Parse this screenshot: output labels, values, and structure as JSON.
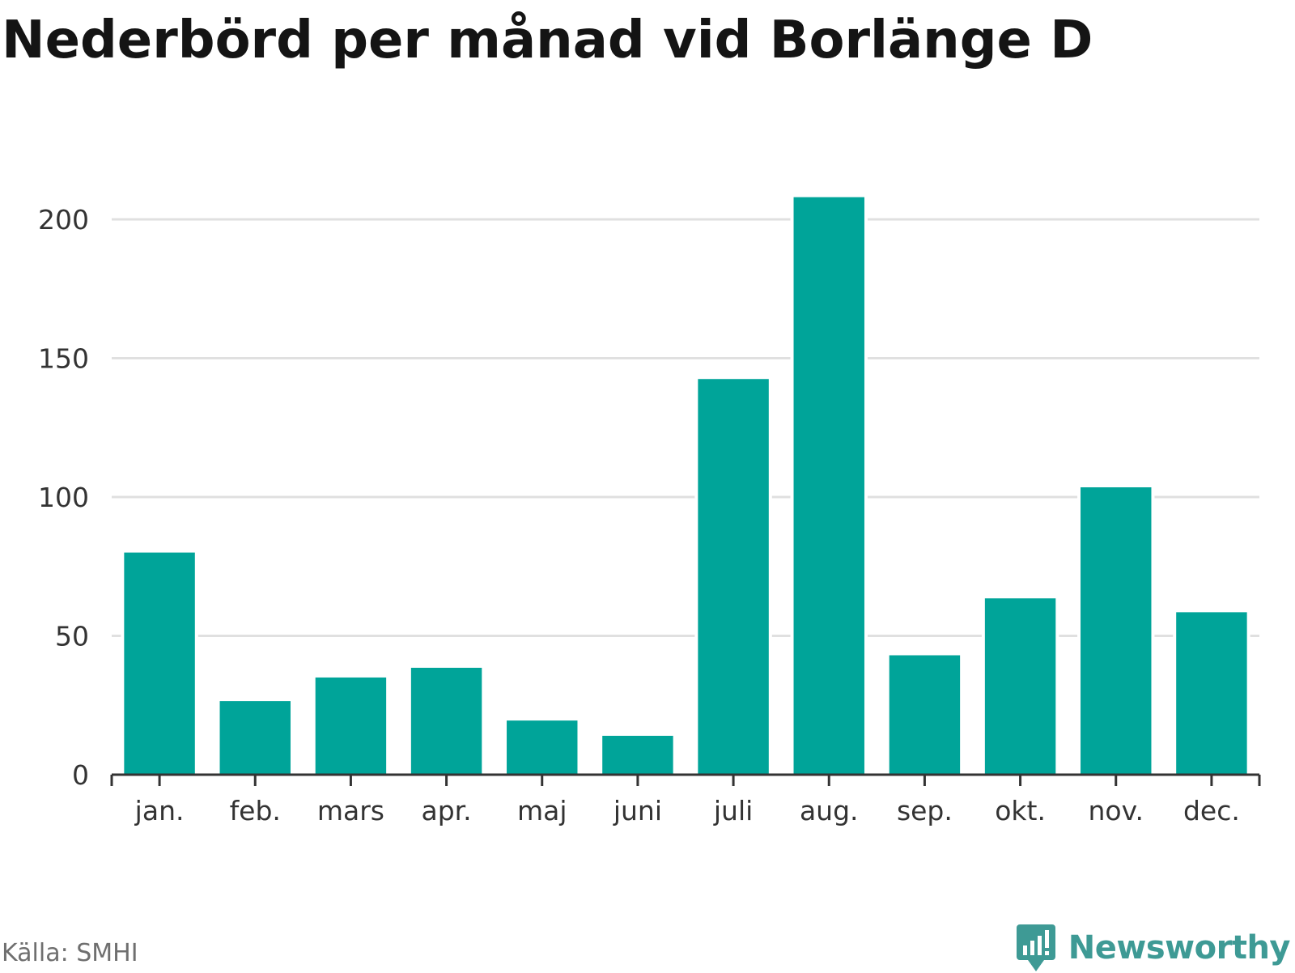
{
  "chart_data": {
    "type": "bar",
    "title": "Nederbörd per månad vid Borlänge D",
    "categories": [
      "jan.",
      "feb.",
      "mars",
      "apr.",
      "maj",
      "juni",
      "juli",
      "aug.",
      "sep.",
      "okt.",
      "nov.",
      "dec."
    ],
    "series": [
      {
        "values": [
          80,
          26.5,
          35,
          38.5,
          19.5,
          14,
          142.5,
          208,
          43,
          63.5,
          103.5,
          58.5
        ]
      }
    ],
    "ylim": [
      0,
      200
    ],
    "yticks": [
      0,
      50,
      100,
      150,
      200
    ],
    "grid": true,
    "legend": "none",
    "bar_color": "#00a499",
    "gridline_color": "#e0e0e0",
    "axis_color": "#333333"
  },
  "footer": {
    "source": "Källa: SMHI",
    "brand": "Newsworthy",
    "brand_color": "#3e9a95",
    "logo_icon": "newsworthy-logo-icon"
  }
}
